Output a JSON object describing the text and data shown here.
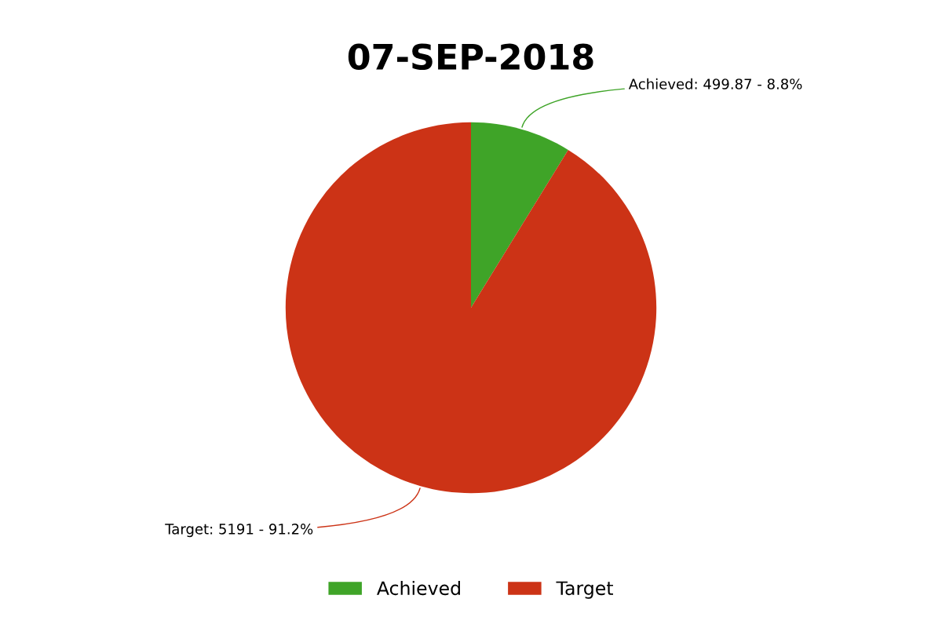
{
  "chart_data": {
    "type": "pie",
    "title": "07-SEP-2018",
    "categories": [
      "Achieved",
      "Target"
    ],
    "values": [
      499.87,
      5191
    ],
    "colors": [
      "#3fa428",
      "#cc3316"
    ],
    "value_labels": [
      "Achieved: 499.87 - 8.8%",
      "Target: 5191 - 91.2%"
    ],
    "legend": "bottom"
  }
}
